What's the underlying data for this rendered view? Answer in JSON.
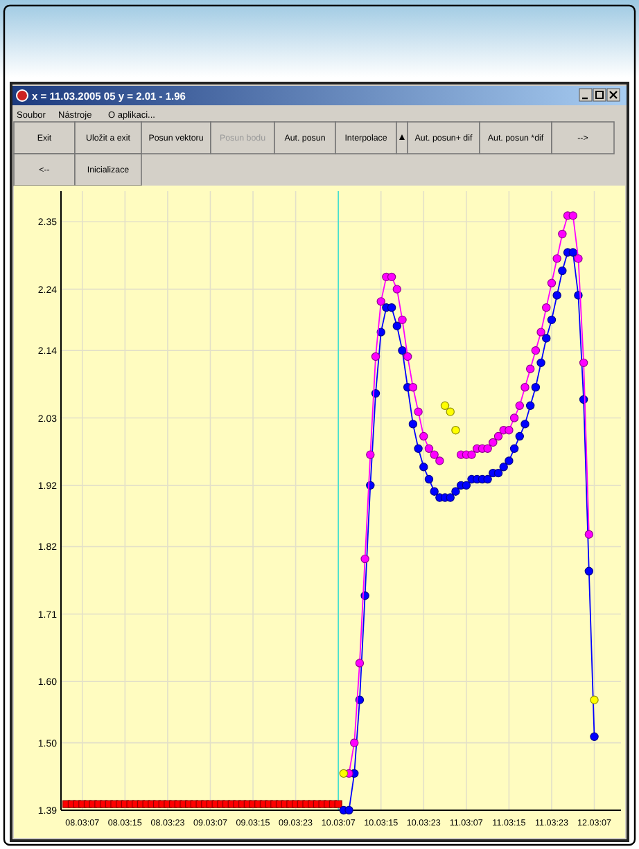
{
  "chart_data": {
    "type": "line",
    "title": "x = 11.03.2005 05 y = 2.01 - 1.96",
    "annotations": [
      "Soubor",
      "Nástroje",
      "O aplikaci...",
      "Exit",
      "Uložit a exit",
      "Posun vektoru",
      "Posun bodu",
      "Aut. posun",
      "Interpolace",
      "Aut. posun+ dif",
      "Aut. posun *dif",
      "-->",
      "<--",
      "Inicializace"
    ],
    "x": [
      "2005-03-10T08:00",
      "2005-03-10T09:00",
      "2005-03-10T10:00",
      "2005-03-10T11:00",
      "2005-03-10T12:00",
      "2005-03-10T13:00",
      "2005-03-10T14:00",
      "2005-03-10T15:00",
      "2005-03-10T16:00",
      "2005-03-10T17:00",
      "2005-03-10T18:00",
      "2005-03-10T19:00",
      "2005-03-10T20:00",
      "2005-03-10T21:00",
      "2005-03-10T22:00",
      "2005-03-10T23:00",
      "2005-03-11T00:00",
      "2005-03-11T01:00",
      "2005-03-11T02:00",
      "2005-03-11T03:00",
      "2005-03-11T04:00",
      "2005-03-11T05:00",
      "2005-03-11T06:00",
      "2005-03-11T07:00",
      "2005-03-11T08:00",
      "2005-03-11T09:00",
      "2005-03-11T10:00",
      "2005-03-11T11:00",
      "2005-03-11T12:00",
      "2005-03-11T13:00",
      "2005-03-11T14:00",
      "2005-03-11T15:00",
      "2005-03-11T16:00",
      "2005-03-11T17:00",
      "2005-03-11T18:00",
      "2005-03-11T19:00",
      "2005-03-11T20:00",
      "2005-03-11T21:00",
      "2005-03-11T22:00",
      "2005-03-11T23:00",
      "2005-03-12T00:00",
      "2005-03-12T01:00",
      "2005-03-12T02:00",
      "2005-03-12T03:00",
      "2005-03-12T04:00",
      "2005-03-12T05:00",
      "2005-03-12T06:00",
      "2005-03-12T07:00"
    ],
    "series": [
      {
        "type": "scatter",
        "marker": "square",
        "color": "#ff0000",
        "x": [
          "2005-03-08T04:00",
          "2005-03-08T05:00",
          "2005-03-08T06:00",
          "2005-03-08T07:00",
          "2005-03-08T08:00",
          "2005-03-08T09:00",
          "2005-03-08T10:00",
          "2005-03-08T11:00",
          "2005-03-08T12:00",
          "2005-03-08T13:00",
          "2005-03-08T14:00",
          "2005-03-08T15:00",
          "2005-03-08T16:00",
          "2005-03-08T17:00",
          "2005-03-08T18:00",
          "2005-03-08T19:00",
          "2005-03-08T20:00",
          "2005-03-08T21:00",
          "2005-03-08T22:00",
          "2005-03-08T23:00",
          "2005-03-09T00:00",
          "2005-03-09T01:00",
          "2005-03-09T02:00",
          "2005-03-09T03:00",
          "2005-03-09T04:00",
          "2005-03-09T05:00",
          "2005-03-09T06:00",
          "2005-03-09T07:00",
          "2005-03-09T08:00",
          "2005-03-09T09:00",
          "2005-03-09T10:00",
          "2005-03-09T11:00",
          "2005-03-09T12:00",
          "2005-03-09T13:00",
          "2005-03-09T14:00",
          "2005-03-09T15:00",
          "2005-03-09T16:00",
          "2005-03-09T17:00",
          "2005-03-09T18:00",
          "2005-03-09T19:00",
          "2005-03-09T20:00",
          "2005-03-09T21:00",
          "2005-03-09T22:00",
          "2005-03-09T23:00",
          "2005-03-10T00:00",
          "2005-03-10T01:00",
          "2005-03-10T02:00",
          "2005-03-10T03:00",
          "2005-03-10T04:00",
          "2005-03-10T05:00",
          "2005-03-10T06:00",
          "2005-03-10T07:00"
        ],
        "values": [
          1.4,
          1.4,
          1.4,
          1.4,
          1.4,
          1.4,
          1.4,
          1.4,
          1.4,
          1.4,
          1.4,
          1.4,
          1.4,
          1.4,
          1.4,
          1.4,
          1.4,
          1.4,
          1.4,
          1.4,
          1.4,
          1.4,
          1.4,
          1.4,
          1.4,
          1.4,
          1.4,
          1.4,
          1.4,
          1.4,
          1.4,
          1.4,
          1.4,
          1.4,
          1.4,
          1.4,
          1.4,
          1.4,
          1.4,
          1.4,
          1.4,
          1.4,
          1.4,
          1.4,
          1.4,
          1.4,
          1.4,
          1.4,
          1.4,
          1.4,
          1.4,
          1.4
        ]
      },
      {
        "color": "#0000ff",
        "marker": "circle",
        "values": [
          1.39,
          1.39,
          1.45,
          1.57,
          1.74,
          1.92,
          2.07,
          2.17,
          2.21,
          2.21,
          2.18,
          2.14,
          2.08,
          2.02,
          1.98,
          1.95,
          1.93,
          1.91,
          1.9,
          1.9,
          1.9,
          1.91,
          1.92,
          1.92,
          1.93,
          1.93,
          1.93,
          1.93,
          1.94,
          1.94,
          1.95,
          1.96,
          1.98,
          2.0,
          2.02,
          2.05,
          2.08,
          2.12,
          2.16,
          2.19,
          2.23,
          2.27,
          2.3,
          2.3,
          2.23,
          2.06,
          1.78,
          1.51
        ]
      },
      {
        "color": "#ff00ff",
        "marker": "circle",
        "values": [
          null,
          1.45,
          1.5,
          1.63,
          1.8,
          1.97,
          2.13,
          2.22,
          2.26,
          2.26,
          2.24,
          2.19,
          2.13,
          2.08,
          2.04,
          2.0,
          1.98,
          1.97,
          1.96,
          null,
          null,
          null,
          1.97,
          1.97,
          1.97,
          1.98,
          1.98,
          1.98,
          1.99,
          2.0,
          2.01,
          2.01,
          2.03,
          2.05,
          2.08,
          2.11,
          2.14,
          2.17,
          2.21,
          2.25,
          2.29,
          2.33,
          2.36,
          2.36,
          2.29,
          2.12,
          1.84,
          null
        ]
      },
      {
        "type": "scatter",
        "marker": "circle",
        "color": "#ffff00",
        "x": [
          "2005-03-10T08:00",
          "2005-03-11T03:00",
          "2005-03-11T04:00",
          "2005-03-11T05:00",
          "2005-03-12T07:00"
        ],
        "values": [
          1.45,
          2.05,
          2.04,
          2.01,
          1.57
        ]
      }
    ],
    "xlim": [
      "2005-03-08T03:00",
      "2005-03-12T12:00"
    ],
    "xticks": [
      {
        "value": "2005-03-08T07:00",
        "label": "08.03:07"
      },
      {
        "value": "2005-03-08T15:00",
        "label": "08.03:15"
      },
      {
        "value": "2005-03-08T23:00",
        "label": "08.03:23"
      },
      {
        "value": "2005-03-09T07:00",
        "label": "09.03:07"
      },
      {
        "value": "2005-03-09T15:00",
        "label": "09.03:15"
      },
      {
        "value": "2005-03-09T23:00",
        "label": "09.03:23"
      },
      {
        "value": "2005-03-10T07:00",
        "label": "10.03:07"
      },
      {
        "value": "2005-03-10T15:00",
        "label": "10.03:15"
      },
      {
        "value": "2005-03-10T23:00",
        "label": "10.03:23"
      },
      {
        "value": "2005-03-11T07:00",
        "label": "11.03:07"
      },
      {
        "value": "2005-03-11T15:00",
        "label": "11.03:15"
      },
      {
        "value": "2005-03-11T23:00",
        "label": "11.03:23"
      },
      {
        "value": "2005-03-12T07:00",
        "label": "12.03:07"
      }
    ],
    "ylim": [
      1.39,
      2.4
    ],
    "yticks": [
      1.39,
      {
        "value": 1.5,
        "label": "1.50"
      },
      {
        "value": 1.6,
        "label": "1.60"
      },
      1.71,
      1.82,
      1.92,
      2.03,
      2.14,
      2.24,
      2.35
    ],
    "ref_lines": [
      {
        "axis": "x",
        "value": "2005-03-10T07:00",
        "color": "#40e0d0"
      }
    ],
    "grid": true
  }
}
